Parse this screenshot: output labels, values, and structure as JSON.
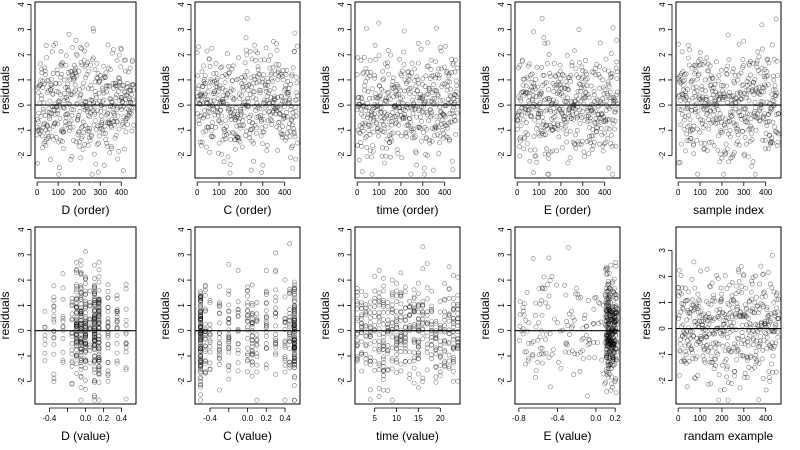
{
  "chart_data": [
    {
      "type": "scatter",
      "xlabel": "D (order)",
      "ylabel": "residuals",
      "xticks": [
        0,
        100,
        200,
        300,
        400
      ],
      "yticks": [
        -2,
        -1,
        0,
        1,
        2,
        3,
        4
      ],
      "xlim": [
        -10,
        470
      ],
      "ylim": [
        -2.9,
        4.1
      ],
      "x_kind": "order",
      "n": 460,
      "seed": 11,
      "hline": 0
    },
    {
      "type": "scatter",
      "xlabel": "C (order)",
      "ylabel": "residuals",
      "xticks": [
        0,
        100,
        200,
        300,
        400
      ],
      "yticks": [
        -2,
        -1,
        0,
        1,
        2,
        3,
        4
      ],
      "xlim": [
        -10,
        470
      ],
      "ylim": [
        -2.9,
        4.1
      ],
      "x_kind": "order",
      "n": 460,
      "seed": 23,
      "hline": 0
    },
    {
      "type": "scatter",
      "xlabel": "time (order)",
      "ylabel": "residuals",
      "xticks": [
        0,
        100,
        200,
        300,
        400
      ],
      "yticks": [
        -2,
        -1,
        0,
        1,
        2,
        3,
        4
      ],
      "xlim": [
        -10,
        470
      ],
      "ylim": [
        -2.9,
        4.1
      ],
      "x_kind": "order",
      "n": 460,
      "seed": 37,
      "hline": 0
    },
    {
      "type": "scatter",
      "xlabel": "E (order)",
      "ylabel": "residuals",
      "xticks": [
        0,
        100,
        200,
        300,
        400
      ],
      "yticks": [
        -2,
        -1,
        0,
        1,
        2,
        3,
        4
      ],
      "xlim": [
        -10,
        470
      ],
      "ylim": [
        -2.9,
        4.1
      ],
      "x_kind": "order",
      "n": 460,
      "seed": 41,
      "hline": 0
    },
    {
      "type": "scatter",
      "xlabel": "sample index",
      "ylabel": "residuals",
      "xticks": [
        0,
        100,
        200,
        300,
        400
      ],
      "yticks": [
        -2,
        -1,
        0,
        1,
        2,
        3,
        4
      ],
      "xlim": [
        -10,
        470
      ],
      "ylim": [
        -2.9,
        4.1
      ],
      "x_kind": "order",
      "n": 460,
      "seed": 53,
      "hline": 0
    },
    {
      "type": "scatter",
      "xlabel": "D (value)",
      "ylabel": "residuals",
      "xticks": [
        -0.4,
        -0.2,
        0,
        0.2,
        0.4
      ],
      "xticklabels": [
        "-0.4",
        "",
        "0.0",
        "0.2",
        "0.4"
      ],
      "yticks": [
        -2,
        -1,
        0,
        1,
        2,
        3,
        4
      ],
      "xlim": [
        -0.56,
        0.56
      ],
      "ylim": [
        -2.9,
        4.1
      ],
      "x_kind": "d_value",
      "n": 460,
      "seed": 61,
      "hline": 0
    },
    {
      "type": "scatter",
      "xlabel": "C (value)",
      "ylabel": "residuals",
      "xticks": [
        -0.4,
        -0.2,
        0,
        0.2,
        0.4
      ],
      "xticklabels": [
        "-0.4",
        "",
        "0.0",
        "0.2",
        "0.4"
      ],
      "yticks": [
        -2,
        -1,
        0,
        1,
        2,
        3,
        4
      ],
      "xlim": [
        -0.56,
        0.56
      ],
      "ylim": [
        -2.9,
        4.1
      ],
      "x_kind": "c_value",
      "n": 460,
      "seed": 71,
      "hline": 0
    },
    {
      "type": "scatter",
      "xlabel": "time (value)",
      "ylabel": "residuals",
      "xticks": [
        5,
        10,
        15,
        20
      ],
      "yticks": [
        -2,
        -1,
        0,
        1,
        2,
        3,
        4
      ],
      "xlim": [
        0.5,
        24.5
      ],
      "ylim": [
        -2.9,
        4.1
      ],
      "x_kind": "time_value",
      "n": 460,
      "seed": 83,
      "hline": 0
    },
    {
      "type": "scatter",
      "xlabel": "E (value)",
      "ylabel": "residuals",
      "xticks": [
        -0.8,
        -0.4,
        0,
        0.2
      ],
      "xticklabels": [
        "-0.8",
        "-0.4",
        "0.0",
        "0.2"
      ],
      "yticks": [
        -2,
        -1,
        0,
        1,
        2,
        3,
        4
      ],
      "xlim": [
        -0.84,
        0.25
      ],
      "ylim": [
        -2.9,
        4.1
      ],
      "x_kind": "e_value",
      "n": 460,
      "seed": 97,
      "hline": 0
    },
    {
      "type": "scatter",
      "xlabel": "randam example",
      "ylabel": "residuals",
      "xticks": [
        0,
        100,
        200,
        300,
        400
      ],
      "yticks": [
        -2,
        -1,
        0,
        1,
        2,
        3
      ],
      "xlim": [
        -10,
        470
      ],
      "ylim": [
        -2.9,
        3.9
      ],
      "x_kind": "order",
      "n": 460,
      "seed": 103,
      "hline": 0
    }
  ]
}
